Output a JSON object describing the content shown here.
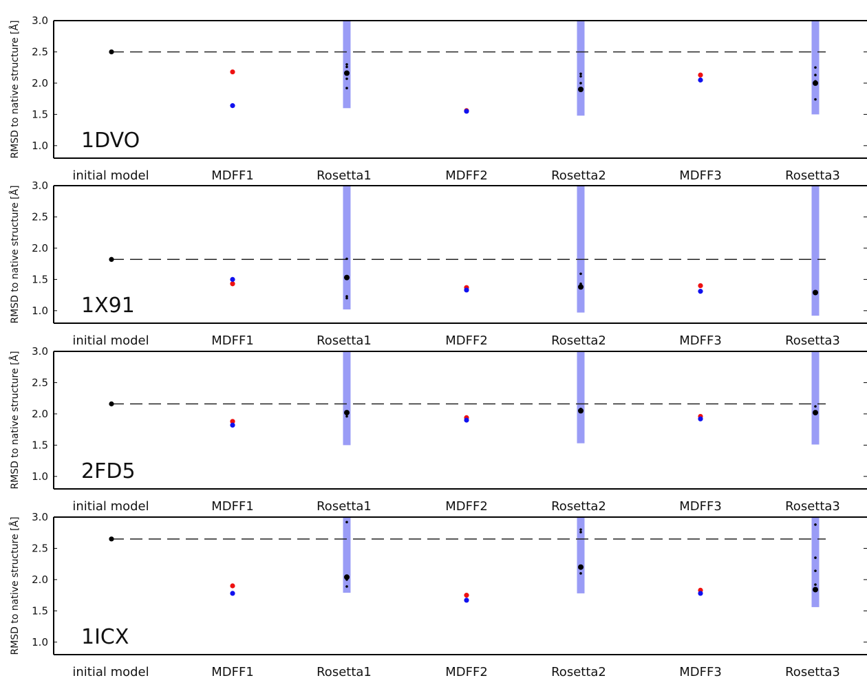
{
  "chart_data": [
    {
      "type": "scatter",
      "panel_label": "1DVO",
      "ylabel": "RMSD to native structure [Å]",
      "categories": [
        "initial model",
        "MDFF1",
        "Rosetta1",
        "MDFF2",
        "Rosetta2",
        "MDFF3",
        "Rosetta3"
      ],
      "ylim": [
        0.8,
        3.0
      ],
      "yticks": [
        "1.0",
        "1.5",
        "2.0",
        "2.5",
        "3.0"
      ],
      "initial_model_rmsd": 2.5,
      "colors": {
        "red": "#ee1111",
        "blue": "#1111ee",
        "black": "#000000",
        "band": "#9a9cf6"
      },
      "mdff": [
        {
          "category": "MDFF1",
          "red": 2.18,
          "blue": 1.64
        },
        {
          "category": "MDFF2",
          "red": 1.56,
          "blue": 1.55
        },
        {
          "category": "MDFF3",
          "red": 2.13,
          "blue": 2.05
        }
      ],
      "rosetta": [
        {
          "category": "Rosetta1",
          "range": [
            1.6,
            3.0
          ],
          "points": [
            2.16,
            2.3,
            2.26,
            2.07,
            1.92
          ]
        },
        {
          "category": "Rosetta2",
          "range": [
            1.48,
            3.0
          ],
          "points": [
            1.9,
            2.15,
            2.11,
            2.0
          ]
        },
        {
          "category": "Rosetta3",
          "range": [
            1.5,
            3.0
          ],
          "points": [
            2.0,
            2.25,
            2.13,
            2.03,
            1.74
          ]
        }
      ]
    },
    {
      "type": "scatter",
      "panel_label": "1X91",
      "ylabel": "RMSD to native structure [Å]",
      "categories": [
        "initial model",
        "MDFF1",
        "Rosetta1",
        "MDFF2",
        "Rosetta2",
        "MDFF3",
        "Rosetta3"
      ],
      "ylim": [
        0.8,
        3.0
      ],
      "yticks": [
        "1.0",
        "1.5",
        "2.0",
        "2.5",
        "3.0"
      ],
      "initial_model_rmsd": 1.82,
      "colors": {
        "red": "#ee1111",
        "blue": "#1111ee",
        "black": "#000000",
        "band": "#9a9cf6"
      },
      "mdff": [
        {
          "category": "MDFF1",
          "red": 1.43,
          "blue": 1.5
        },
        {
          "category": "MDFF2",
          "red": 1.37,
          "blue": 1.33
        },
        {
          "category": "MDFF3",
          "red": 1.4,
          "blue": 1.31
        }
      ],
      "rosetta": [
        {
          "category": "Rosetta1",
          "range": [
            1.02,
            3.0
          ],
          "points": [
            1.53,
            1.83,
            1.23,
            1.2
          ]
        },
        {
          "category": "Rosetta2",
          "range": [
            0.97,
            3.0
          ],
          "points": [
            1.38,
            1.59,
            1.43
          ]
        },
        {
          "category": "Rosetta3",
          "range": [
            0.92,
            3.0
          ],
          "points": [
            1.29,
            1.31
          ]
        }
      ]
    },
    {
      "type": "scatter",
      "panel_label": "2FD5",
      "ylabel": "RMSD to native structure [Å]",
      "categories": [
        "initial model",
        "MDFF1",
        "Rosetta1",
        "MDFF2",
        "Rosetta2",
        "MDFF3",
        "Rosetta3"
      ],
      "ylim": [
        0.8,
        3.0
      ],
      "yticks": [
        "1.0",
        "1.5",
        "2.0",
        "2.5",
        "3.0"
      ],
      "initial_model_rmsd": 2.16,
      "colors": {
        "red": "#ee1111",
        "blue": "#1111ee",
        "black": "#000000",
        "band": "#9a9cf6"
      },
      "mdff": [
        {
          "category": "MDFF1",
          "red": 1.88,
          "blue": 1.82
        },
        {
          "category": "MDFF2",
          "red": 1.94,
          "blue": 1.9
        },
        {
          "category": "MDFF3",
          "red": 1.96,
          "blue": 1.92
        }
      ],
      "rosetta": [
        {
          "category": "Rosetta1",
          "range": [
            1.5,
            3.0
          ],
          "points": [
            2.02,
            1.96
          ]
        },
        {
          "category": "Rosetta2",
          "range": [
            1.53,
            3.0
          ],
          "points": [
            2.05,
            2.08
          ]
        },
        {
          "category": "Rosetta3",
          "range": [
            1.51,
            3.0
          ],
          "points": [
            2.02,
            2.12
          ]
        }
      ]
    },
    {
      "type": "scatter",
      "panel_label": "1ICX",
      "ylabel": "RMSD to native structure [Å]",
      "categories": [
        "initial model",
        "MDFF1",
        "Rosetta1",
        "MDFF2",
        "Rosetta2",
        "MDFF3",
        "Rosetta3"
      ],
      "ylim": [
        0.8,
        3.0
      ],
      "yticks": [
        "1.0",
        "1.5",
        "2.0",
        "2.5",
        "3.0"
      ],
      "initial_model_rmsd": 2.65,
      "colors": {
        "red": "#ee1111",
        "blue": "#1111ee",
        "black": "#000000",
        "band": "#9a9cf6"
      },
      "mdff": [
        {
          "category": "MDFF1",
          "red": 1.9,
          "blue": 1.78
        },
        {
          "category": "MDFF2",
          "red": 1.75,
          "blue": 1.67
        },
        {
          "category": "MDFF3",
          "red": 1.83,
          "blue": 1.78
        }
      ],
      "rosetta": [
        {
          "category": "Rosetta1",
          "range": [
            1.79,
            3.0
          ],
          "points": [
            2.04,
            2.92,
            2.0,
            1.89
          ]
        },
        {
          "category": "Rosetta2",
          "range": [
            1.78,
            3.0
          ],
          "points": [
            2.2,
            2.8,
            2.76,
            2.1
          ]
        },
        {
          "category": "Rosetta3",
          "range": [
            1.56,
            3.0
          ],
          "points": [
            1.84,
            2.88,
            2.35,
            2.14,
            1.92
          ]
        }
      ]
    }
  ]
}
